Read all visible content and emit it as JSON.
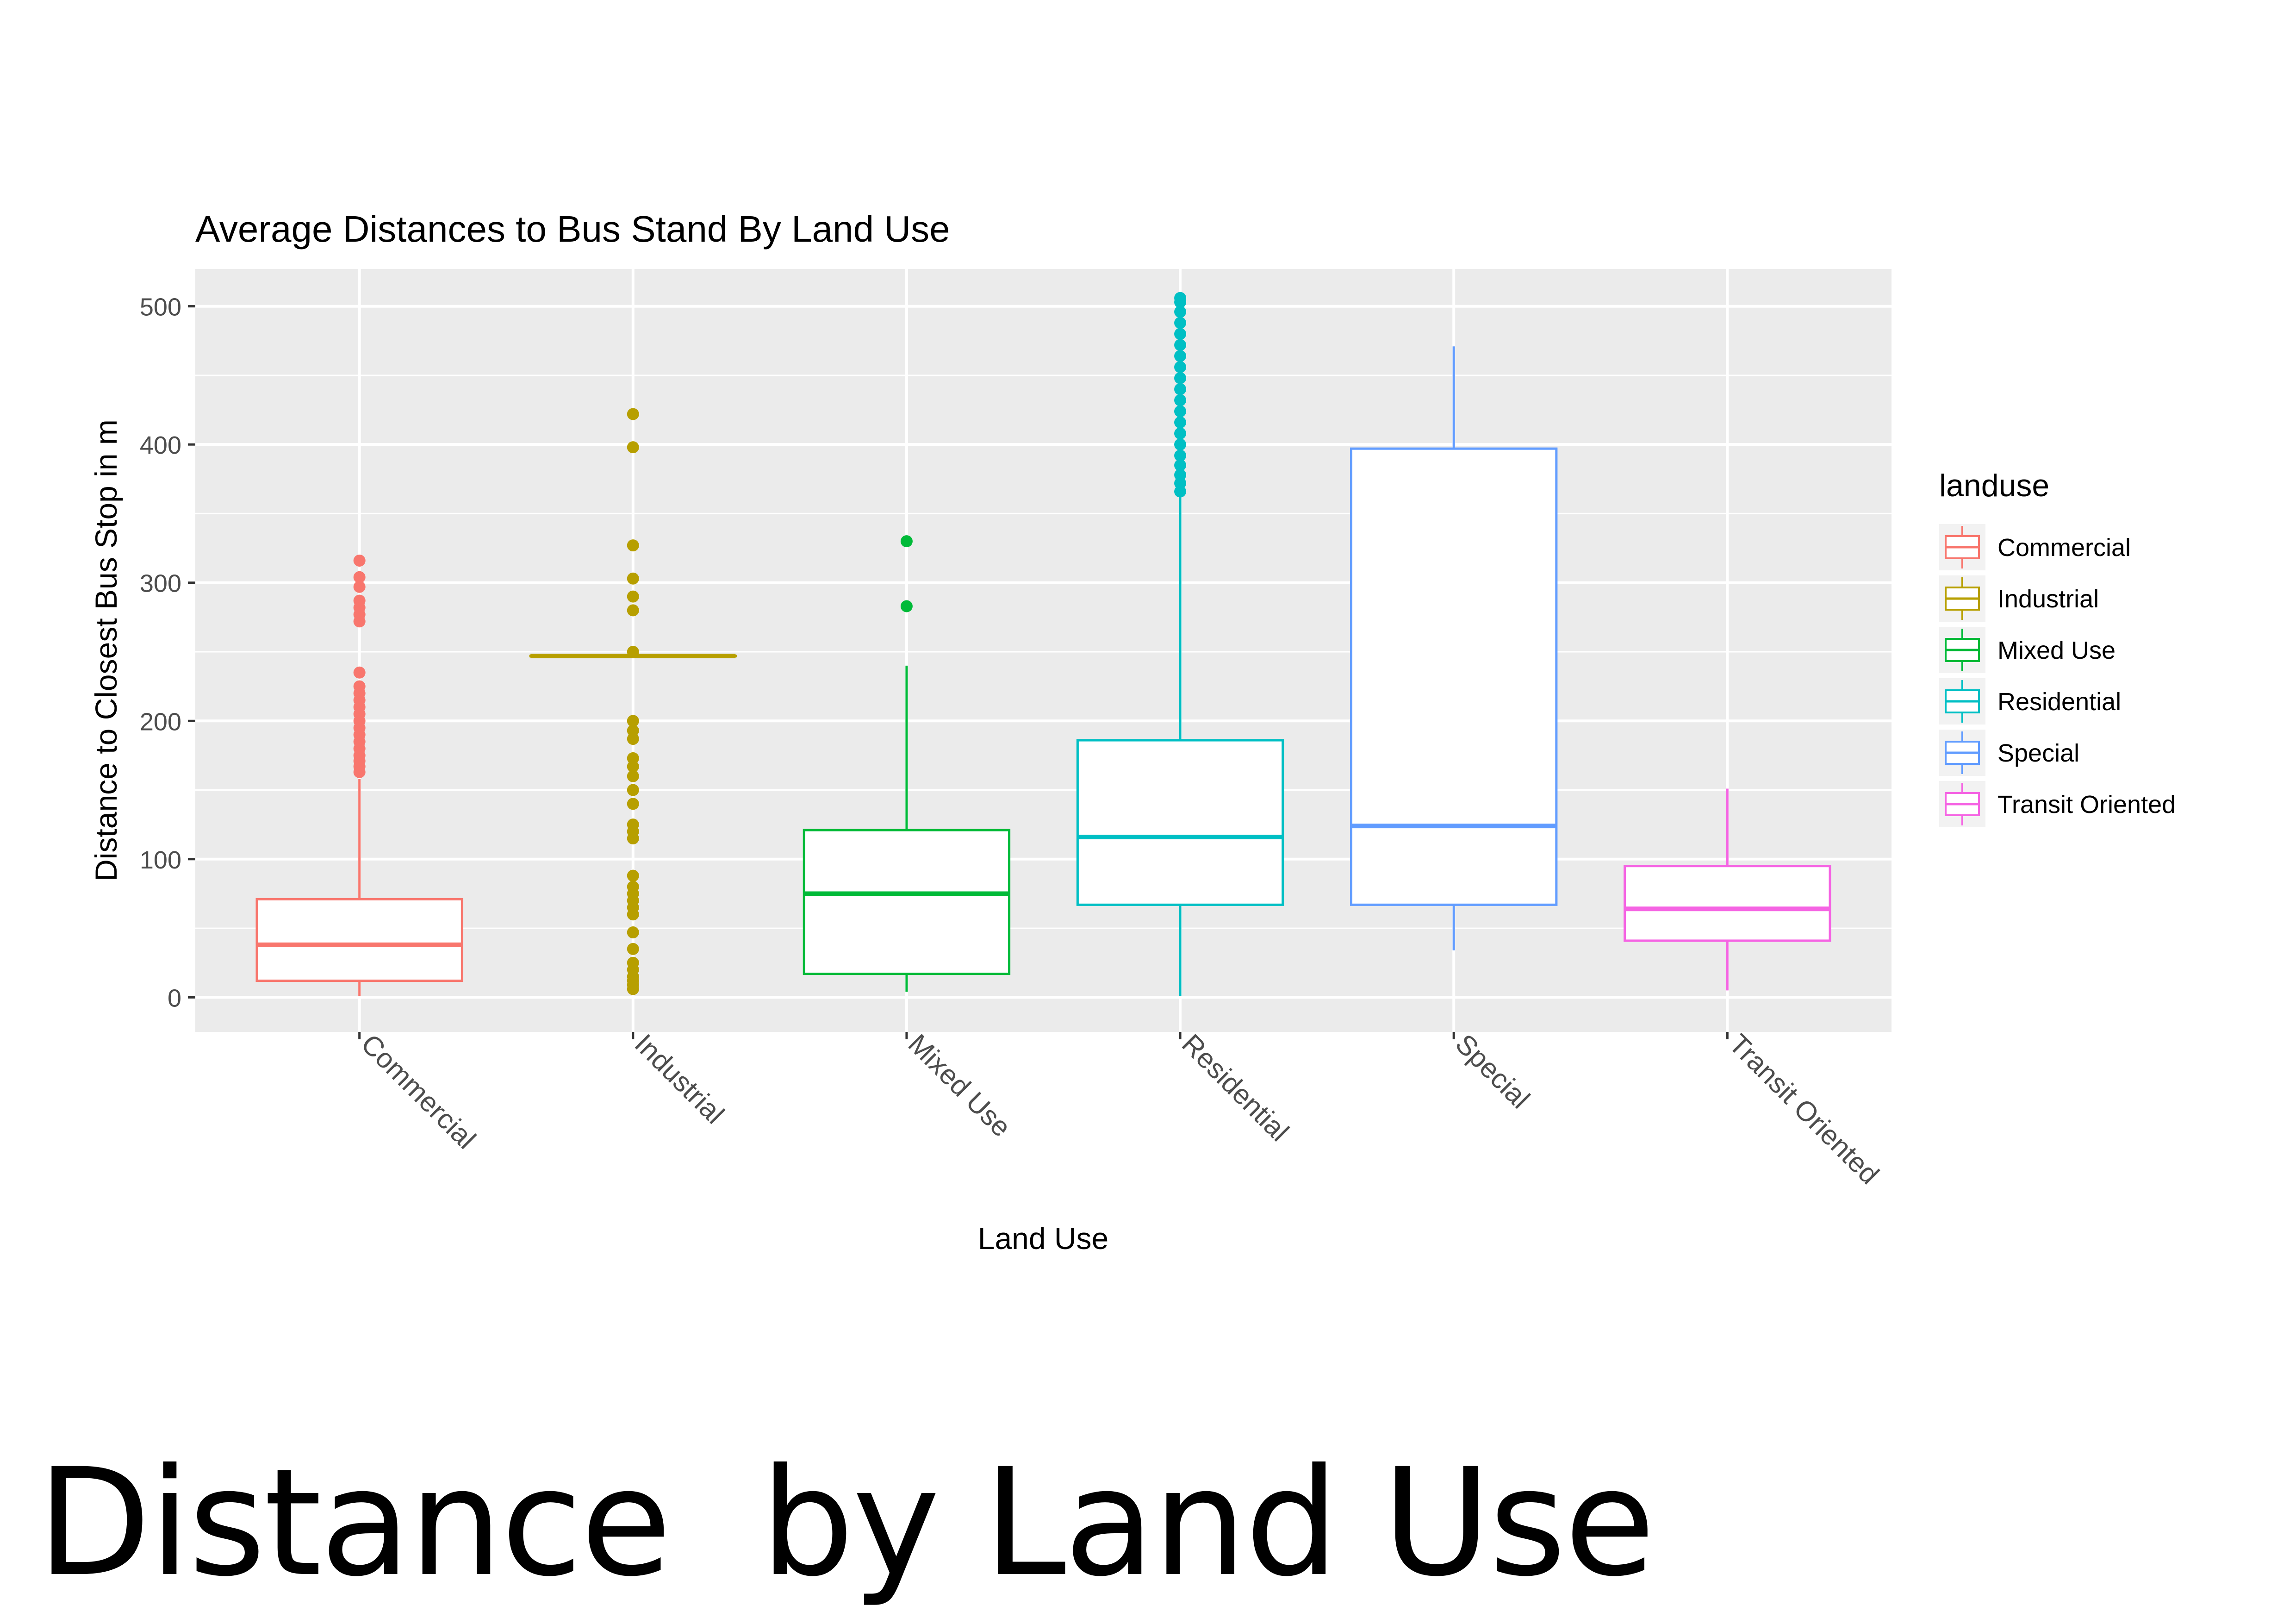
{
  "caption": "Distance  by Land Use",
  "chart_data": {
    "type": "box",
    "title": "Average Distances to Bus Stand By Land Use",
    "xlabel": "Land Use",
    "ylabel": "Distance to Closest Bus Stop in m",
    "ylim": [
      -25,
      527
    ],
    "yticks": [
      0,
      100,
      200,
      300,
      400,
      500
    ],
    "grid": true,
    "legend_title": "landuse",
    "legend_position": "right",
    "categories": [
      "Commercial",
      "Industrial",
      "Mixed Use",
      "Residential",
      "Special",
      "Transit Oriented"
    ],
    "series": [
      {
        "name": "Commercial",
        "color": "#F8766D",
        "whisker_low": 1,
        "q1": 12,
        "median": 38,
        "q3": 71,
        "whisker_high": 158,
        "outliers": [
          163,
          167,
          171,
          175,
          180,
          185,
          190,
          195,
          200,
          205,
          210,
          215,
          220,
          225,
          235,
          272,
          277,
          282,
          287,
          297,
          304,
          316
        ]
      },
      {
        "name": "Industrial",
        "color": "#B79F00",
        "whisker_low": 247,
        "q1": 247,
        "median": 247,
        "q3": 247,
        "whisker_high": 247,
        "outliers": [
          6,
          9,
          12,
          15,
          20,
          25,
          35,
          47,
          60,
          65,
          70,
          75,
          80,
          88,
          115,
          120,
          125,
          140,
          150,
          160,
          167,
          173,
          187,
          193,
          200,
          250,
          280,
          290,
          303,
          327,
          398,
          422
        ]
      },
      {
        "name": "Mixed Use",
        "color": "#00BA38",
        "whisker_low": 4,
        "q1": 17,
        "median": 75,
        "q3": 121,
        "whisker_high": 240,
        "outliers": [
          283,
          330
        ]
      },
      {
        "name": "Residential",
        "color": "#00BFC4",
        "whisker_low": 1,
        "q1": 67,
        "median": 116,
        "q3": 186,
        "whisker_high": 363,
        "outliers": [
          366,
          372,
          378,
          385,
          392,
          400,
          408,
          416,
          424,
          432,
          440,
          448,
          456,
          464,
          472,
          480,
          488,
          496,
          503,
          506
        ]
      },
      {
        "name": "Special",
        "color": "#619CFF",
        "whisker_low": 34,
        "q1": 67,
        "median": 124,
        "q3": 397,
        "whisker_high": 471,
        "outliers": []
      },
      {
        "name": "Transit Oriented",
        "color": "#F564E3",
        "whisker_low": 5,
        "q1": 41,
        "median": 64,
        "q3": 95,
        "whisker_high": 151,
        "outliers": []
      }
    ]
  }
}
